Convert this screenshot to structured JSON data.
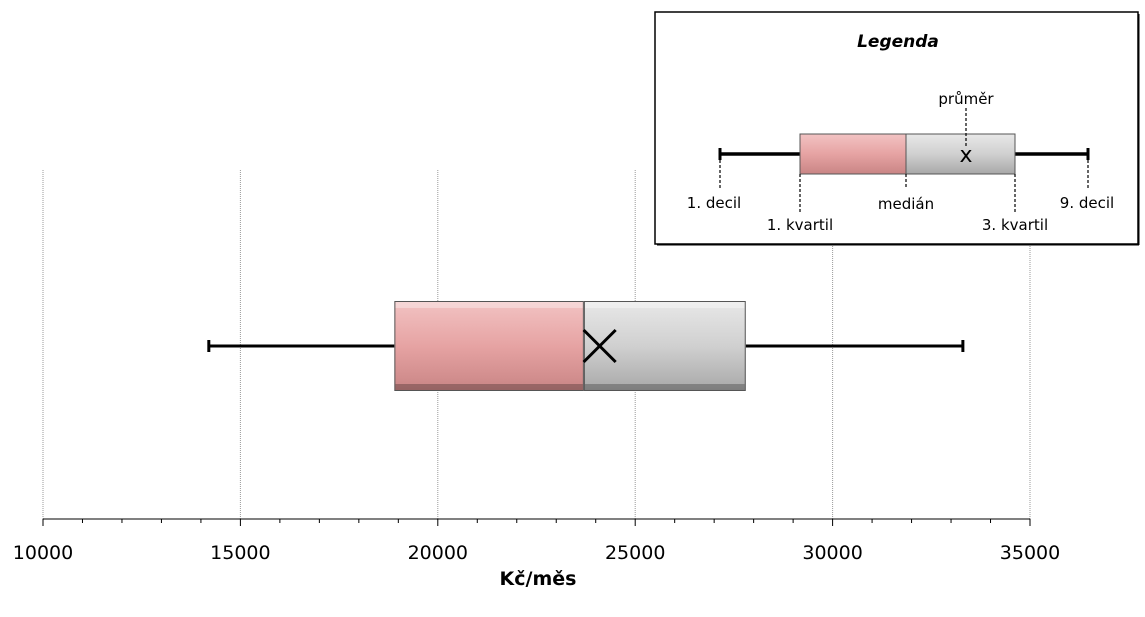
{
  "chart_data": {
    "type": "box",
    "orientation": "horizontal",
    "xlabel": "Kč/měs",
    "xlim": [
      10000,
      35000
    ],
    "major_ticks": [
      10000,
      15000,
      20000,
      25000,
      30000,
      35000
    ],
    "minor_step": 1000,
    "grid": true,
    "box": {
      "decile_1": 14200,
      "quartile_1": 18900,
      "median": 23700,
      "mean": 24100,
      "quartile_3": 27800,
      "decile_9": 33300
    },
    "colors": {
      "lower_box": "#e6a3a3",
      "upper_box": "#cfcfcf"
    },
    "legend": {
      "title": "Legenda",
      "placement": "top-right",
      "labels": {
        "mean": "průměr",
        "decile_1": "1. decil",
        "quartile_1": "1. kvartil",
        "median": "medián",
        "quartile_3": "3. kvartil",
        "decile_9": "9. decil"
      }
    }
  }
}
